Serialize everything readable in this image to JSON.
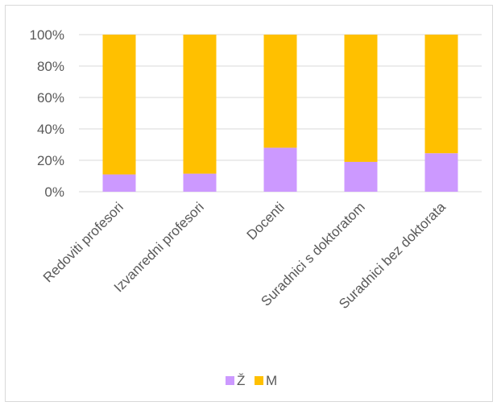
{
  "chart_data": {
    "type": "bar",
    "stacked": true,
    "percent_stacked": true,
    "categories": [
      "Redoviti profesori",
      "Izvanredni profesori",
      "Docenti",
      "Suradnici s doktoratom",
      "Suradnici bez doktorata"
    ],
    "series": [
      {
        "name": "Ž",
        "color": "#cc99ff",
        "values": [
          11,
          11.5,
          28,
          19,
          24.5
        ]
      },
      {
        "name": "M",
        "color": "#ffc000",
        "values": [
          89,
          88.5,
          72,
          81,
          75.5
        ]
      }
    ],
    "yticks": [
      "0%",
      "20%",
      "40%",
      "60%",
      "80%",
      "100%"
    ],
    "ylim": [
      0,
      100
    ],
    "grid": true,
    "legend_position": "bottom"
  }
}
